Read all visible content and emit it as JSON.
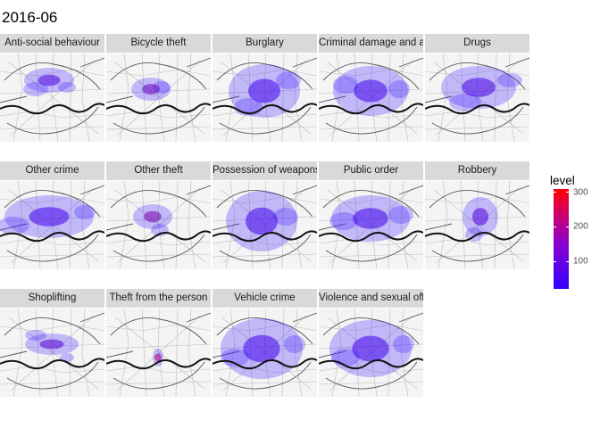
{
  "title": "2016-06",
  "chart_data": {
    "type": "heatmap",
    "title": "2016-06",
    "facets": [
      {
        "label": "Anti-social behaviour",
        "peak_level": 60
      },
      {
        "label": "Bicycle theft",
        "peak_level": 90
      },
      {
        "label": "Burglary",
        "peak_level": 40
      },
      {
        "label": "Criminal damage and arson",
        "peak_level": 40
      },
      {
        "label": "Drugs",
        "peak_level": 50
      },
      {
        "label": "Other crime",
        "peak_level": 40
      },
      {
        "label": "Other theft",
        "peak_level": 120
      },
      {
        "label": "Possession of weapons",
        "peak_level": 40
      },
      {
        "label": "Public order",
        "peak_level": 40
      },
      {
        "label": "Robbery",
        "peak_level": 60
      },
      {
        "label": "Shoplifting",
        "peak_level": 70
      },
      {
        "label": "Theft from the person",
        "peak_level": 180
      },
      {
        "label": "Vehicle crime",
        "peak_level": 40
      },
      {
        "label": "Violence and sexual offences",
        "peak_level": 40
      }
    ],
    "legend": {
      "title": "level",
      "placement": "right",
      "range": [
        20,
        310
      ],
      "ticks": [
        100,
        200,
        300
      ],
      "colors": {
        "low": "#3300ff",
        "high": "#ff0000"
      }
    }
  }
}
